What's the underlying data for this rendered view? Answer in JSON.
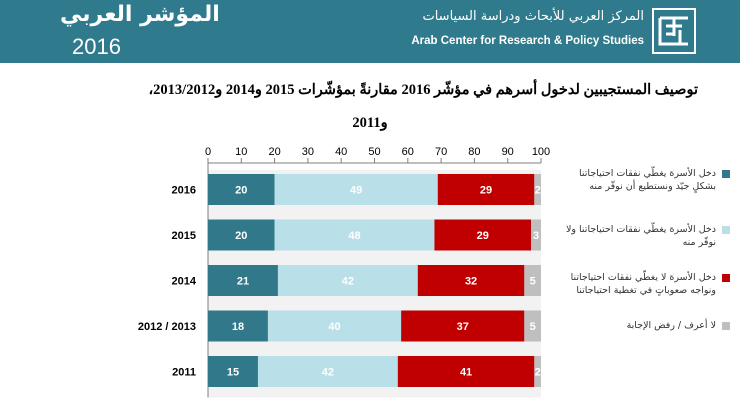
{
  "header": {
    "brand_title": "المؤشر العربي",
    "brand_year": "2016",
    "center_name_ar": "المركز العربي للأبحاث ودراسة السياسات",
    "center_name_en": "Arab Center for Research & Policy Studies",
    "bg_color": "#2f7a8c"
  },
  "title_line1": "توصيف المستجيبين لدخول أسرهم في مؤشّر 2016 مقارنةً بمؤشّرات 2015 و2014 و2013/2012،",
  "title_line2": "و2011",
  "chart_data": {
    "type": "bar",
    "orientation": "horizontal",
    "stacked": true,
    "xlim": [
      0,
      100
    ],
    "xticks": [
      "0",
      "10",
      "20",
      "30",
      "40",
      "50",
      "60",
      "70",
      "80",
      "90",
      "100"
    ],
    "categories": [
      "2016",
      "2015",
      "2014",
      "2012 / 2013",
      "2011"
    ],
    "series": [
      {
        "name": "دخل الأسرة يغطّي نفقات احتياجاتنا بشكلٍ جيّد ونستطيع أن نوفّر منه",
        "color": "#31788a",
        "values": [
          20,
          20,
          21,
          18,
          15
        ]
      },
      {
        "name": "دخل الأسرة يغطّي نفقات احتياجاتنا ولا نوفّر منه",
        "color": "#b9dfe9",
        "values": [
          49,
          48,
          42,
          40,
          42
        ]
      },
      {
        "name": "دخل الأسرة لا يغطّي نفقات احتياجاتنا ونواجه صعوباتٍ في تغطية احتياجاتنا",
        "color": "#c00000",
        "values": [
          29,
          29,
          32,
          37,
          41
        ]
      },
      {
        "name": "لا أعرف / رفض الإجابة",
        "color": "#bfbfbf",
        "values": [
          2,
          3,
          5,
          5,
          2
        ]
      }
    ]
  }
}
